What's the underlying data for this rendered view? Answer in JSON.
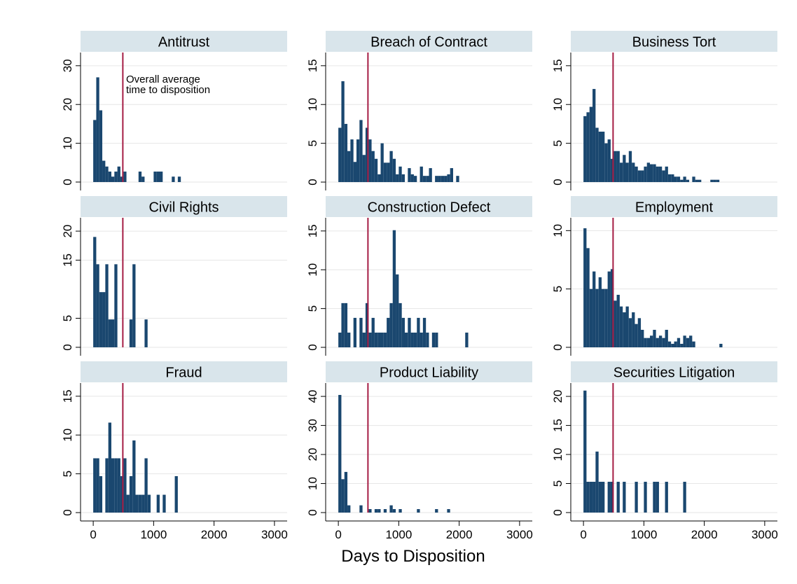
{
  "x_axis_title": "Days to Disposition",
  "chart_data": [
    {
      "type": "histogram",
      "title": "Antitrust",
      "color": "#1a476f",
      "bins": [
        0,
        50,
        100,
        150,
        200,
        250,
        300,
        350,
        400,
        450,
        500,
        550,
        600,
        650,
        700,
        750,
        800,
        850,
        900,
        950,
        1000,
        1050,
        1100,
        1150,
        1200,
        1250,
        1300,
        1350,
        1400,
        1450
      ],
      "values": [
        16,
        27,
        18.5,
        5.5,
        4,
        2.7,
        1.4,
        2.7,
        4,
        1.4,
        2.7,
        0,
        0,
        0,
        0,
        2.7,
        1.4,
        0,
        0,
        0,
        2.7,
        2.7,
        2.7,
        0,
        0,
        0,
        1.4,
        0,
        1.4
      ],
      "xlim": [
        -210,
        3210
      ],
      "ylim": [
        -2.17,
        33.4
      ],
      "yticks": [
        0,
        10,
        20,
        30
      ],
      "reference_line": {
        "value": 490,
        "color": "#a51c44"
      },
      "annotation": [
        "Overall average",
        "time to disposition"
      ]
    },
    {
      "type": "histogram",
      "title": "Breach of Contract",
      "color": "#1a476f",
      "bins": [
        0,
        50,
        100,
        150,
        200,
        250,
        300,
        350,
        400,
        450,
        500,
        550,
        600,
        650,
        700,
        750,
        800,
        850,
        900,
        950,
        1000,
        1050,
        1100,
        1150,
        1200,
        1250,
        1300,
        1350,
        1400,
        1450,
        1500,
        1550,
        1600,
        1650,
        1700,
        1750,
        1800,
        1850,
        1900,
        1950,
        2000
      ],
      "values": [
        7,
        13,
        7.5,
        4,
        5.5,
        2.6,
        5.5,
        8,
        3.5,
        7,
        5.5,
        4,
        3,
        1,
        5,
        2.5,
        2.5,
        4,
        3,
        1,
        2,
        1,
        0,
        1.8,
        1,
        0.8,
        0,
        2,
        0.8,
        0.8,
        1.8,
        0,
        0.8,
        0.8,
        0.8,
        0.8,
        1,
        1.8,
        0,
        0.8
      ],
      "xlim": [
        -210,
        3210
      ],
      "ylim": [
        -1.08,
        16.7
      ],
      "yticks": [
        0,
        5,
        10,
        15
      ],
      "reference_line": {
        "value": 490,
        "color": "#a51c44"
      }
    },
    {
      "type": "histogram",
      "title": "Business Tort",
      "color": "#1a476f",
      "bins": [
        0,
        50,
        100,
        150,
        200,
        250,
        300,
        350,
        400,
        450,
        500,
        550,
        600,
        650,
        700,
        750,
        800,
        850,
        900,
        950,
        1000,
        1050,
        1100,
        1150,
        1200,
        1250,
        1300,
        1350,
        1400,
        1450,
        1500,
        1550,
        1600,
        1650,
        1700,
        1750,
        1800,
        1850,
        1900,
        1950,
        2000,
        2050,
        2100,
        2150,
        2200,
        2250
      ],
      "values": [
        8.5,
        9,
        9.7,
        12,
        7,
        6.5,
        6.5,
        5,
        5.5,
        3,
        4,
        4,
        2.5,
        3.5,
        2.5,
        4,
        2.5,
        2,
        1.5,
        1.5,
        2,
        2.5,
        2.3,
        2.3,
        2,
        2,
        1.5,
        2,
        1,
        1,
        0.7,
        0.7,
        0.3,
        0.7,
        0.3,
        0,
        0.7,
        0.3,
        0.3,
        0,
        0,
        0,
        0.3,
        0.3,
        0.3
      ],
      "xlim": [
        -210,
        3210
      ],
      "ylim": [
        -1.08,
        16.7
      ],
      "yticks": [
        0,
        5,
        10,
        15
      ],
      "reference_line": {
        "value": 490,
        "color": "#a51c44"
      }
    },
    {
      "type": "histogram",
      "title": "Civil Rights",
      "color": "#1a476f",
      "bins": [
        0,
        50,
        100,
        150,
        200,
        250,
        300,
        350,
        400,
        450,
        500,
        550,
        600,
        650,
        700,
        750,
        800,
        850,
        900
      ],
      "values": [
        19,
        14.3,
        9.5,
        9.5,
        14.3,
        4.8,
        4.8,
        14.3,
        0,
        0,
        0,
        0,
        4.8,
        14.3,
        0,
        0,
        0,
        4.8
      ],
      "xlim": [
        -210,
        3210
      ],
      "ylim": [
        -1.45,
        22.3
      ],
      "yticks": [
        0,
        5,
        15,
        20
      ],
      "reference_line": {
        "value": 490,
        "color": "#a51c44"
      }
    },
    {
      "type": "histogram",
      "title": "Construction Defect",
      "color": "#1a476f",
      "bins": [
        0,
        50,
        100,
        150,
        200,
        250,
        300,
        350,
        400,
        450,
        500,
        550,
        600,
        650,
        700,
        750,
        800,
        850,
        900,
        950,
        1000,
        1050,
        1100,
        1150,
        1200,
        1250,
        1300,
        1350,
        1400,
        1450,
        1500,
        1550,
        1600,
        1650,
        1700,
        1750,
        1800,
        1850,
        1900,
        1950,
        2000,
        2050,
        2100,
        2150
      ],
      "values": [
        1.9,
        5.7,
        5.7,
        1.9,
        0,
        3.8,
        0,
        3.8,
        1.9,
        5.7,
        1.9,
        3.8,
        1.9,
        1.9,
        1.9,
        1.9,
        3.8,
        5.7,
        15.1,
        9.4,
        5.7,
        3.8,
        1.9,
        3.8,
        1.9,
        1.9,
        3.8,
        1.9,
        3.8,
        1.9,
        0,
        1.9,
        1.9,
        0,
        0,
        0,
        0,
        0,
        0,
        0,
        0,
        0,
        1.9
      ],
      "xlim": [
        -210,
        3210
      ],
      "ylim": [
        -1.08,
        16.7
      ],
      "yticks": [
        0,
        5,
        10,
        15
      ],
      "reference_line": {
        "value": 490,
        "color": "#a51c44"
      }
    },
    {
      "type": "histogram",
      "title": "Employment",
      "color": "#1a476f",
      "bins": [
        0,
        50,
        100,
        150,
        200,
        250,
        300,
        350,
        400,
        450,
        500,
        550,
        600,
        650,
        700,
        750,
        800,
        850,
        900,
        950,
        1000,
        1050,
        1100,
        1150,
        1200,
        1250,
        1300,
        1350,
        1400,
        1450,
        1500,
        1550,
        1600,
        1650,
        1700,
        1750,
        1800,
        1850,
        1900,
        1950,
        2000,
        2050,
        2100,
        2150,
        2200,
        2250,
        2300
      ],
      "values": [
        10.2,
        8.5,
        5,
        6.5,
        5,
        6,
        5,
        5,
        6.5,
        6.7,
        4,
        4.5,
        3.5,
        3,
        3.5,
        2.5,
        3,
        2,
        2.5,
        1.5,
        0.8,
        0.8,
        1,
        1.5,
        0.8,
        1,
        0.8,
        1.5,
        0.5,
        0.3,
        0.5,
        0.8,
        0.3,
        1,
        0.8,
        1,
        0.5,
        0,
        0,
        0,
        0,
        0,
        0,
        0,
        0,
        0.3
      ],
      "xlim": [
        -210,
        3210
      ],
      "ylim": [
        -0.72,
        11.1
      ],
      "yticks": [
        0,
        5,
        10
      ],
      "reference_line": {
        "value": 490,
        "color": "#a51c44"
      }
    },
    {
      "type": "histogram",
      "title": "Fraud",
      "color": "#1a476f",
      "bins": [
        0,
        50,
        100,
        150,
        200,
        250,
        300,
        350,
        400,
        450,
        500,
        550,
        600,
        650,
        700,
        750,
        800,
        850,
        900,
        950,
        1000,
        1050,
        1100,
        1150,
        1200,
        1250,
        1300,
        1350,
        1400
      ],
      "values": [
        7,
        7,
        4.7,
        0,
        7,
        11.6,
        7,
        7,
        7,
        4.7,
        7,
        2.3,
        4.7,
        9.3,
        2.3,
        2.3,
        2.3,
        7,
        2.3,
        0,
        0,
        2.3,
        0,
        2.3,
        0,
        0,
        0,
        4.7
      ],
      "xlim": [
        -210,
        3210
      ],
      "ylim": [
        -1.08,
        16.7
      ],
      "yticks": [
        0,
        5,
        10,
        15
      ],
      "xticks": [
        0,
        1000,
        2000,
        3000
      ],
      "reference_line": {
        "value": 490,
        "color": "#a51c44"
      }
    },
    {
      "type": "histogram",
      "title": "Product Liability",
      "color": "#1a476f",
      "bins": [
        0,
        50,
        100,
        150,
        200,
        250,
        300,
        350,
        400,
        450,
        500,
        550,
        600,
        650,
        700,
        750,
        800,
        850,
        900,
        950,
        1000,
        1050,
        1100,
        1150,
        1200,
        1250,
        1300,
        1350,
        1400,
        1450,
        1500,
        1550,
        1600,
        1650,
        1700,
        1750,
        1800,
        1850
      ],
      "values": [
        40.5,
        11.5,
        14,
        2.5,
        0,
        0,
        0,
        2.5,
        0,
        0,
        1.2,
        0,
        1.2,
        1.2,
        0,
        1.2,
        0,
        2.5,
        1.2,
        0,
        1.2,
        0,
        0,
        0,
        0,
        0,
        1.2,
        0,
        0,
        0,
        0,
        0,
        1.2,
        0,
        0,
        0,
        1.2
      ],
      "xlim": [
        -210,
        3210
      ],
      "ylim": [
        -2.89,
        44.6
      ],
      "yticks": [
        0,
        10,
        20,
        30,
        40
      ],
      "xticks": [
        0,
        1000,
        2000,
        3000
      ],
      "reference_line": {
        "value": 490,
        "color": "#a51c44"
      }
    },
    {
      "type": "histogram",
      "title": "Securities Litigation",
      "color": "#1a476f",
      "bins": [
        0,
        50,
        100,
        150,
        200,
        250,
        300,
        350,
        400,
        450,
        500,
        550,
        600,
        650,
        700,
        750,
        800,
        850,
        900,
        950,
        1000,
        1050,
        1100,
        1150,
        1200,
        1250,
        1300,
        1350,
        1400,
        1450,
        1500,
        1550,
        1600,
        1650,
        1700
      ],
      "values": [
        21,
        5.3,
        5.3,
        5.3,
        10.5,
        5.3,
        5.3,
        0,
        5.3,
        5.3,
        0,
        5.3,
        0,
        5.3,
        0,
        0,
        0,
        5.3,
        0,
        0,
        5.3,
        0,
        0,
        5.3,
        5.3,
        0,
        0,
        5.3,
        0,
        0,
        0,
        0,
        0,
        5.3
      ],
      "xlim": [
        -210,
        3210
      ],
      "ylim": [
        -1.45,
        22.3
      ],
      "yticks": [
        0,
        5,
        10,
        15,
        20
      ],
      "xticks": [
        0,
        1000,
        2000,
        3000
      ],
      "reference_line": {
        "value": 490,
        "color": "#a51c44"
      }
    }
  ]
}
